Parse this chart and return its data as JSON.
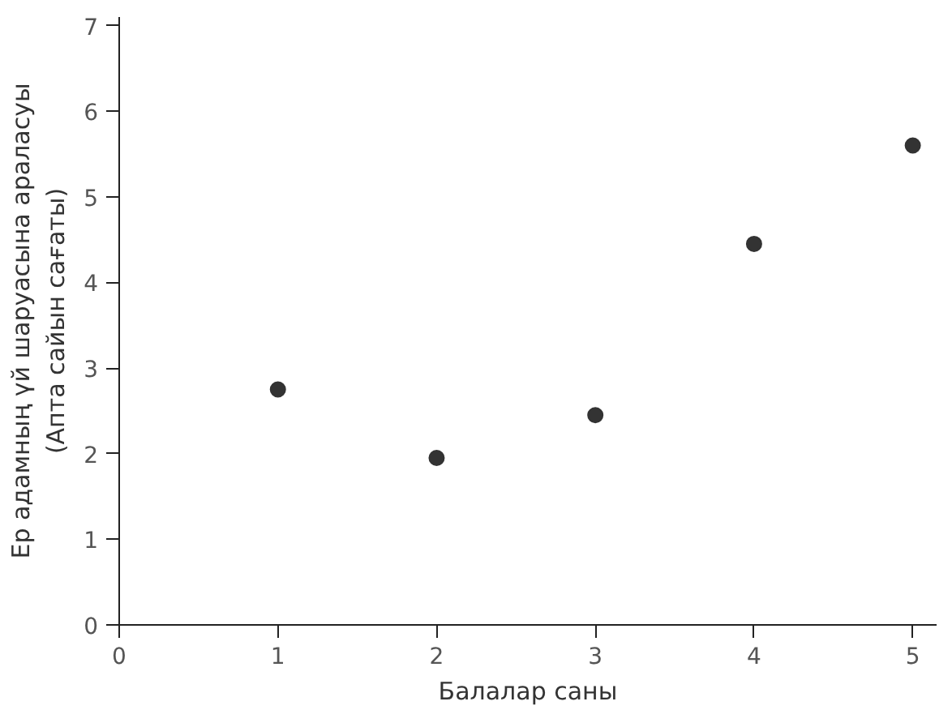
{
  "chart_data": {
    "type": "scatter",
    "xlabel": "Балалар саны",
    "ylabel": "Ер адамның үй шаруасына араласуы\n(Апта сайын сағаты)",
    "x": [
      1,
      2,
      3,
      4,
      5
    ],
    "series": [
      {
        "color": "#333333",
        "values": [
          2.75,
          1.95,
          2.45,
          4.45,
          5.6
        ]
      }
    ],
    "xlim": [
      0,
      5.15
    ],
    "ylim": [
      0,
      7.1
    ],
    "xticks": [
      0,
      1,
      2,
      3,
      4,
      5
    ],
    "yticks": [
      0,
      1,
      2,
      3,
      4,
      5,
      6,
      7
    ],
    "grid": false,
    "marker": "circle"
  }
}
